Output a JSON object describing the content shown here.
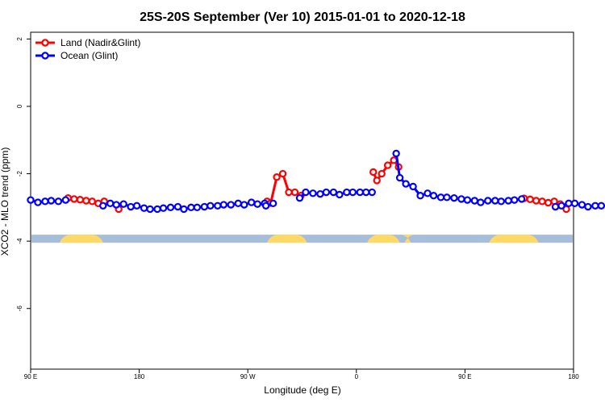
{
  "chart_data": {
    "type": "line",
    "title": "25S-20S September (Ver 10)   2015-01-01 to 2020-12-18",
    "xlabel": "Longitude (deg E)",
    "ylabel": "XCO2 - MLO trend (ppm)",
    "xlim": [
      90,
      540
    ],
    "ylim": [
      -7.8,
      2.2
    ],
    "x_ticks": [
      {
        "value": 90,
        "label": "90 E"
      },
      {
        "value": 180,
        "label": "180"
      },
      {
        "value": 270,
        "label": "90 W"
      },
      {
        "value": 360,
        "label": "0"
      },
      {
        "value": 450,
        "label": "90 E"
      },
      {
        "value": 540,
        "label": "180"
      }
    ],
    "y_ticks": [
      {
        "value": 2,
        "label": "2"
      },
      {
        "value": 0,
        "label": "0"
      },
      {
        "value": -2,
        "label": "-2"
      },
      {
        "value": -4,
        "label": "-4"
      },
      {
        "value": -6,
        "label": "-6"
      }
    ],
    "legend": {
      "position": "top-left"
    },
    "colors": {
      "land": "#ff0000",
      "ocean": "#0000ff",
      "land_mask": "#ffd966",
      "ocean_mask": "#a6bddb"
    },
    "series": [
      {
        "name": "Land (Nadir&Glint)",
        "color": "#ff0000",
        "segments": [
          {
            "x": [
              121,
              126,
              131,
              136,
              141,
              146,
              151
            ],
            "y": [
              -2.72,
              -2.75,
              -2.77,
              -2.8,
              -2.82,
              -2.88,
              -2.82
            ]
          },
          {
            "x": [
              163
            ],
            "y": [
              -3.05
            ]
          },
          {
            "x": [
              286,
              289,
              294,
              299,
              304,
              309,
              314
            ],
            "y": [
              -2.82,
              -2.87,
              -2.1,
              -2.0,
              -2.55,
              -2.55,
              -2.65
            ]
          },
          {
            "x": [
              374,
              377,
              381,
              386,
              391,
              395
            ],
            "y": [
              -1.95,
              -2.2,
              -2.0,
              -1.75,
              -1.6,
              -1.8
            ]
          },
          {
            "x": [
              499,
              504,
              509,
              514,
              519,
              524
            ],
            "y": [
              -2.73,
              -2.76,
              -2.8,
              -2.82,
              -2.86,
              -2.82
            ]
          },
          {
            "x": [
              529,
              534
            ],
            "y": [
              -2.9,
              -3.05
            ]
          }
        ]
      },
      {
        "name": "Ocean (Glint)",
        "color": "#0000ff",
        "segments": [
          {
            "x": [
              90,
              96,
              102,
              107,
              113,
              119
            ],
            "y": [
              -2.78,
              -2.85,
              -2.82,
              -2.8,
              -2.82,
              -2.78
            ]
          },
          {
            "x": [
              150,
              156,
              161,
              167,
              173,
              178,
              184,
              189,
              195,
              200,
              206,
              212,
              217,
              223,
              228,
              234,
              239,
              245,
              250,
              256,
              262,
              267,
              273,
              278,
              284
            ],
            "y": [
              -2.95,
              -2.88,
              -2.92,
              -2.9,
              -2.98,
              -2.95,
              -3.02,
              -3.05,
              -3.05,
              -3.02,
              -3.0,
              -2.98,
              -3.05,
              -3.0,
              -3.0,
              -2.98,
              -2.95,
              -2.95,
              -2.92,
              -2.92,
              -2.88,
              -2.92,
              -2.85,
              -2.9,
              -2.88
            ]
          },
          {
            "x": [
              285,
              291
            ],
            "y": [
              -2.95,
              -2.88
            ]
          },
          {
            "x": [
              313,
              318,
              324,
              330,
              335,
              341,
              346,
              352,
              357,
              363,
              368,
              373
            ],
            "y": [
              -2.72,
              -2.55,
              -2.58,
              -2.6,
              -2.55,
              -2.55,
              -2.62,
              -2.55,
              -2.55,
              -2.55,
              -2.55,
              -2.55
            ]
          },
          {
            "x": [
              393,
              396,
              401,
              407,
              413,
              419,
              424,
              430,
              435,
              441,
              447,
              452,
              458,
              463,
              469,
              475,
              480,
              486,
              491,
              497
            ],
            "y": [
              -1.4,
              -2.12,
              -2.3,
              -2.38,
              -2.65,
              -2.58,
              -2.65,
              -2.7,
              -2.7,
              -2.72,
              -2.75,
              -2.78,
              -2.8,
              -2.85,
              -2.8,
              -2.8,
              -2.82,
              -2.8,
              -2.78,
              -2.75
            ]
          },
          {
            "x": [
              525,
              530,
              536,
              541,
              547,
              552,
              558,
              563
            ],
            "y": [
              -2.98,
              -2.95,
              -2.88,
              -2.88,
              -2.92,
              -2.98,
              -2.95,
              -2.95
            ]
          }
        ]
      }
    ],
    "land_mask": {
      "y": -4.0,
      "land_intervals": [
        [
          114,
          150
        ],
        [
          286,
          319
        ],
        [
          369,
          396
        ],
        [
          400,
          405
        ],
        [
          470,
          511
        ]
      ]
    }
  }
}
